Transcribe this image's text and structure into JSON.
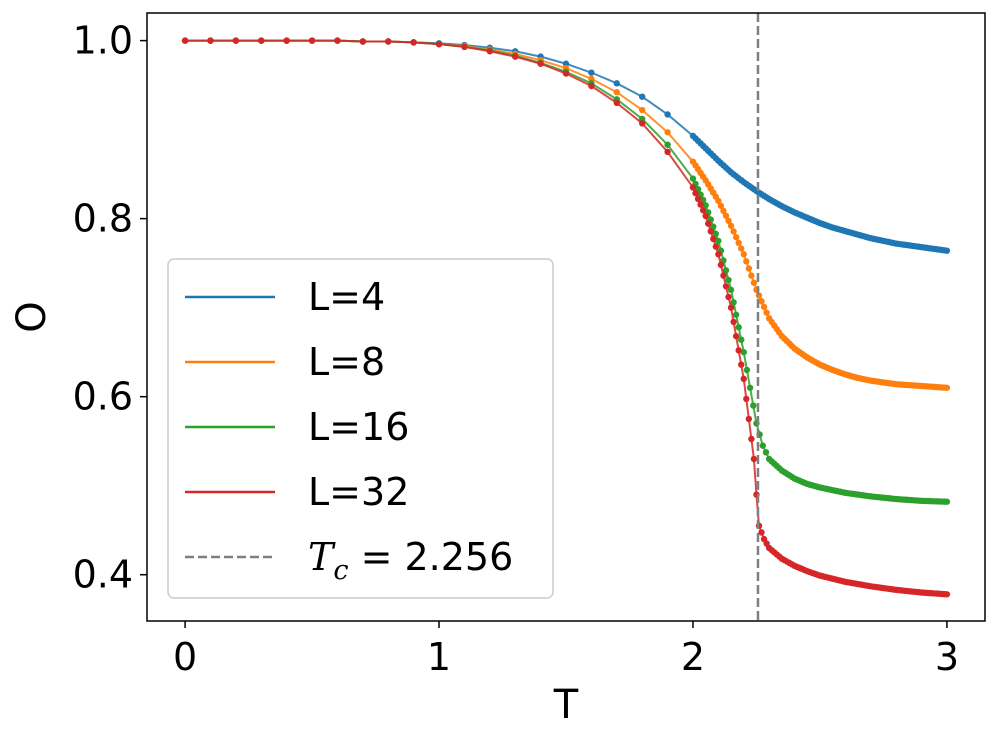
{
  "chart_data": {
    "type": "line",
    "xlabel": "T",
    "ylabel": "O",
    "xlim": [
      -0.15,
      3.15
    ],
    "ylim": [
      0.348,
      1.031
    ],
    "xticks": [
      0,
      1,
      2,
      3
    ],
    "xtick_labels": [
      "0",
      "1",
      "2",
      "3"
    ],
    "yticks": [
      0.4,
      0.6,
      0.8,
      1.0
    ],
    "ytick_labels": [
      "0.4",
      "0.6",
      "0.8",
      "1.0"
    ],
    "grid": false,
    "legend_position": "lower-left",
    "series": [
      {
        "name": "L=4",
        "color": "#1f77b4",
        "x": [
          0.0,
          0.1,
          0.2,
          0.3,
          0.4,
          0.5,
          0.6,
          0.7,
          0.8,
          0.9,
          1.0,
          1.1,
          1.2,
          1.3,
          1.4,
          1.5,
          1.6,
          1.7,
          1.8,
          1.9,
          2.0,
          2.05,
          2.1,
          2.15,
          2.2,
          2.25,
          2.3,
          2.35,
          2.4,
          2.45,
          2.5,
          2.55,
          2.6,
          2.65,
          2.7,
          2.75,
          2.8,
          2.85,
          2.9,
          2.95,
          3.0
        ],
        "y": [
          1.0,
          1.0,
          1.0,
          1.0,
          1.0,
          1.0,
          1.0,
          0.999,
          0.999,
          0.998,
          0.997,
          0.995,
          0.992,
          0.988,
          0.982,
          0.974,
          0.964,
          0.952,
          0.937,
          0.917,
          0.893,
          0.879,
          0.865,
          0.852,
          0.841,
          0.831,
          0.822,
          0.814,
          0.807,
          0.801,
          0.795,
          0.79,
          0.786,
          0.782,
          0.778,
          0.775,
          0.772,
          0.77,
          0.768,
          0.766,
          0.764
        ]
      },
      {
        "name": "L=8",
        "color": "#ff7f0e",
        "x": [
          0.0,
          0.1,
          0.2,
          0.3,
          0.4,
          0.5,
          0.6,
          0.7,
          0.8,
          0.9,
          1.0,
          1.1,
          1.2,
          1.3,
          1.4,
          1.5,
          1.6,
          1.7,
          1.8,
          1.9,
          2.0,
          2.05,
          2.1,
          2.15,
          2.2,
          2.25,
          2.3,
          2.35,
          2.4,
          2.45,
          2.5,
          2.55,
          2.6,
          2.65,
          2.7,
          2.75,
          2.8,
          2.85,
          2.9,
          2.95,
          3.0
        ],
        "y": [
          1.0,
          1.0,
          1.0,
          1.0,
          1.0,
          1.0,
          1.0,
          0.999,
          0.999,
          0.998,
          0.996,
          0.994,
          0.99,
          0.985,
          0.978,
          0.969,
          0.957,
          0.942,
          0.922,
          0.897,
          0.864,
          0.843,
          0.82,
          0.792,
          0.76,
          0.72,
          0.688,
          0.668,
          0.654,
          0.644,
          0.636,
          0.63,
          0.625,
          0.621,
          0.618,
          0.616,
          0.614,
          0.613,
          0.612,
          0.611,
          0.61
        ]
      },
      {
        "name": "L=16",
        "color": "#2ca02c",
        "x": [
          0.0,
          0.1,
          0.2,
          0.3,
          0.4,
          0.5,
          0.6,
          0.7,
          0.8,
          0.9,
          1.0,
          1.1,
          1.2,
          1.3,
          1.4,
          1.5,
          1.6,
          1.7,
          1.8,
          1.9,
          2.0,
          2.05,
          2.1,
          2.15,
          2.2,
          2.225,
          2.25,
          2.275,
          2.3,
          2.35,
          2.4,
          2.45,
          2.5,
          2.6,
          2.7,
          2.8,
          2.9,
          3.0
        ],
        "y": [
          1.0,
          1.0,
          1.0,
          1.0,
          1.0,
          1.0,
          1.0,
          0.999,
          0.999,
          0.998,
          0.996,
          0.993,
          0.989,
          0.983,
          0.975,
          0.965,
          0.952,
          0.934,
          0.912,
          0.883,
          0.845,
          0.815,
          0.775,
          0.72,
          0.65,
          0.61,
          0.57,
          0.545,
          0.53,
          0.517,
          0.508,
          0.502,
          0.498,
          0.492,
          0.488,
          0.485,
          0.483,
          0.482
        ]
      },
      {
        "name": "L=32",
        "color": "#d62728",
        "x": [
          0.0,
          0.1,
          0.2,
          0.3,
          0.4,
          0.5,
          0.6,
          0.7,
          0.8,
          0.9,
          1.0,
          1.1,
          1.2,
          1.3,
          1.4,
          1.5,
          1.6,
          1.7,
          1.8,
          1.9,
          2.0,
          2.05,
          2.1,
          2.15,
          2.2,
          2.22,
          2.24,
          2.25,
          2.26,
          2.28,
          2.3,
          2.35,
          2.4,
          2.45,
          2.5,
          2.6,
          2.7,
          2.8,
          2.9,
          3.0
        ],
        "y": [
          1.0,
          1.0,
          1.0,
          1.0,
          1.0,
          1.0,
          1.0,
          0.999,
          0.999,
          0.998,
          0.996,
          0.993,
          0.988,
          0.982,
          0.974,
          0.963,
          0.949,
          0.93,
          0.907,
          0.875,
          0.835,
          0.803,
          0.76,
          0.7,
          0.62,
          0.575,
          0.53,
          0.49,
          0.455,
          0.44,
          0.43,
          0.418,
          0.41,
          0.404,
          0.399,
          0.392,
          0.387,
          0.383,
          0.38,
          0.378
        ]
      }
    ],
    "vlines": [
      {
        "name": "T_c",
        "x": 2.256,
        "color": "#808080",
        "style": "dashed"
      }
    ],
    "legend": [
      {
        "label": "L=4",
        "color": "#1f77b4",
        "style": "solid"
      },
      {
        "label": "L=8",
        "color": "#ff7f0e",
        "style": "solid"
      },
      {
        "label": "L=16",
        "color": "#2ca02c",
        "style": "solid"
      },
      {
        "label": "L=32",
        "color": "#d62728",
        "style": "solid"
      },
      {
        "label_math": "T",
        "label_sub": "c",
        "label_rest": " = 2.256",
        "color": "#808080",
        "style": "dashed"
      }
    ]
  }
}
